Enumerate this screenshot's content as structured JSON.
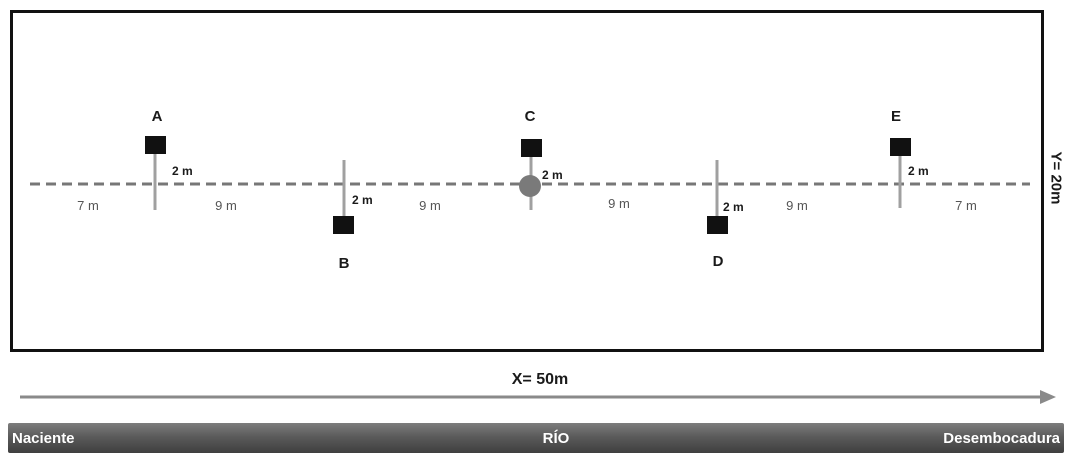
{
  "stations": [
    {
      "id": "A",
      "side": "above",
      "offset_label": "2 m"
    },
    {
      "id": "B",
      "side": "below",
      "offset_label": "2 m"
    },
    {
      "id": "C",
      "side": "above",
      "offset_label": "2 m"
    },
    {
      "id": "D",
      "side": "below",
      "offset_label": "2 m"
    },
    {
      "id": "E",
      "side": "above",
      "offset_label": "2 m"
    }
  ],
  "distances": [
    "7 m",
    "9 m",
    "9 m",
    "9 m",
    "9 m",
    "7 m"
  ],
  "dimensions": {
    "width_label": "X= 50m",
    "height_label": "Y= 20m"
  },
  "river": {
    "left_label": "Naciente",
    "center_label": "RÍO",
    "right_label": "Desembocadura"
  },
  "colors": {
    "frame": "#111111",
    "centerline": "#777777",
    "marker": "#111111",
    "river": "#5b5b5b",
    "arrow": "#8a8a8a"
  }
}
